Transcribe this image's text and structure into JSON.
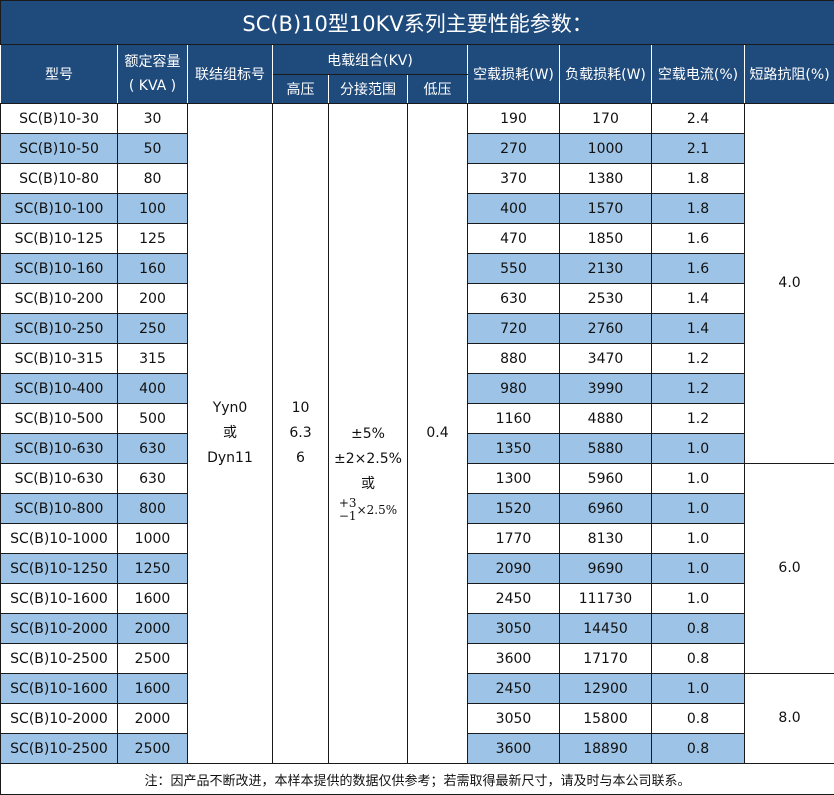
{
  "title": "SC(B)10型10KV系列主要性能参数：",
  "headers": {
    "model": "型号",
    "capacity": "额定容量",
    "capacity_unit": "( KVA )",
    "group": "联结组标号",
    "voltage": "电载组合(KV)",
    "high": "高压",
    "tap": "分接范围",
    "low": "低压",
    "no_load_loss": "空载损耗(W)",
    "load_loss": "负载损耗(W)",
    "no_load_current": "空载电流(%)",
    "impedance": "短路抗阻(%)"
  },
  "merged": {
    "group": [
      "Yyn0",
      "或",
      "Dyn11"
    ],
    "high": [
      "10",
      "6.3",
      "6"
    ],
    "tap": [
      "±5%",
      "±2×2.5%",
      "或"
    ],
    "tap_frac_top": "+3",
    "tap_frac_bottom": "−1",
    "tap_frac_suffix": "×2.5%",
    "low": "0.4"
  },
  "impedance_groups": [
    {
      "value": "4.0",
      "rows": 12
    },
    {
      "value": "6.0",
      "rows": 7
    },
    {
      "value": "8.0",
      "rows": 3
    }
  ],
  "rows": [
    [
      "SC(B)10-30",
      "30",
      "190",
      "170",
      "2.4"
    ],
    [
      "SC(B)10-50",
      "50",
      "270",
      "1000",
      "2.1"
    ],
    [
      "SC(B)10-80",
      "80",
      "370",
      "1380",
      "1.8"
    ],
    [
      "SC(B)10-100",
      "100",
      "400",
      "1570",
      "1.8"
    ],
    [
      "SC(B)10-125",
      "125",
      "470",
      "1850",
      "1.6"
    ],
    [
      "SC(B)10-160",
      "160",
      "550",
      "2130",
      "1.6"
    ],
    [
      "SC(B)10-200",
      "200",
      "630",
      "2530",
      "1.4"
    ],
    [
      "SC(B)10-250",
      "250",
      "720",
      "2760",
      "1.4"
    ],
    [
      "SC(B)10-315",
      "315",
      "880",
      "3470",
      "1.2"
    ],
    [
      "SC(B)10-400",
      "400",
      "980",
      "3990",
      "1.2"
    ],
    [
      "SC(B)10-500",
      "500",
      "1160",
      "4880",
      "1.2"
    ],
    [
      "SC(B)10-630",
      "630",
      "1350",
      "5880",
      "1.0"
    ],
    [
      "SC(B)10-630",
      "630",
      "1300",
      "5960",
      "1.0"
    ],
    [
      "SC(B)10-800",
      "800",
      "1520",
      "6960",
      "1.0"
    ],
    [
      "SC(B)10-1000",
      "1000",
      "1770",
      "8130",
      "1.0"
    ],
    [
      "SC(B)10-1250",
      "1250",
      "2090",
      "9690",
      "1.0"
    ],
    [
      "SC(B)10-1600",
      "1600",
      "2450",
      "111730",
      "1.0"
    ],
    [
      "SC(B)10-2000",
      "2000",
      "3050",
      "14450",
      "0.8"
    ],
    [
      "SC(B)10-2500",
      "2500",
      "3600",
      "17170",
      "0.8"
    ],
    [
      "SC(B)10-1600",
      "1600",
      "2450",
      "12900",
      "1.0"
    ],
    [
      "SC(B)10-2000",
      "2000",
      "3050",
      "15800",
      "0.8"
    ],
    [
      "SC(B)10-2500",
      "2500",
      "3600",
      "18890",
      "0.8"
    ]
  ],
  "footer": "注：因产品不断改进，本样本提供的数据仅供参考；若需取得最新尺寸，请及时与本公司联系。",
  "colors": {
    "header": "#1f4a7c",
    "stripe": "#9dc3e6"
  }
}
